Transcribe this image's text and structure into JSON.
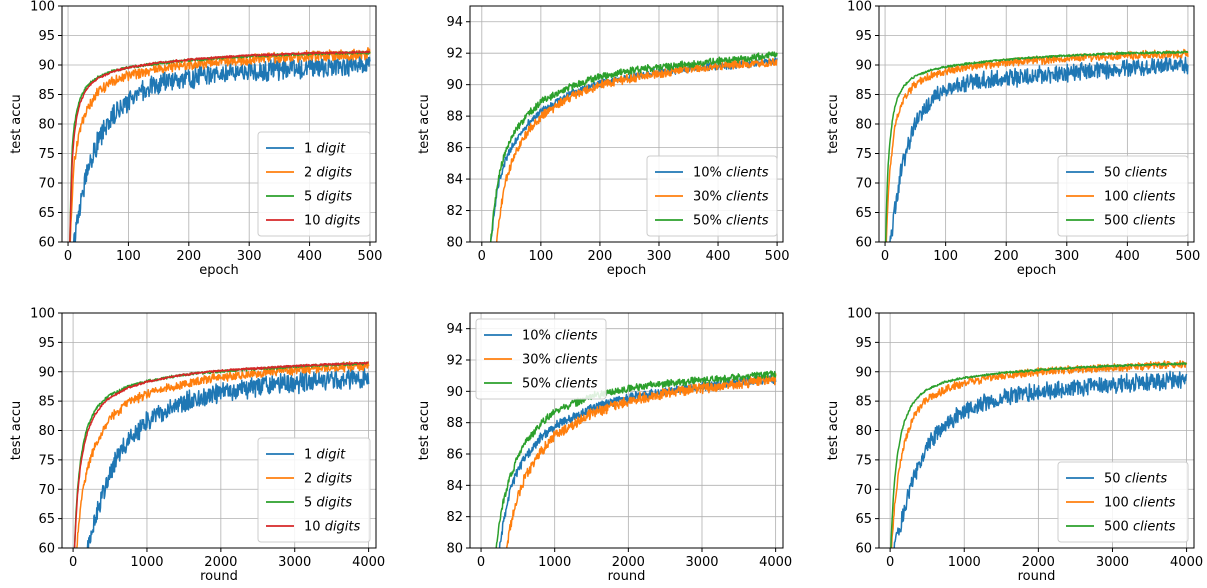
{
  "chart_data": [
    {
      "type": "line",
      "xlabel": "epoch",
      "ylabel": "test accu",
      "xlim": [
        -10,
        510
      ],
      "ylim": [
        60,
        100
      ],
      "xticks": [
        0,
        100,
        200,
        300,
        400,
        500
      ],
      "yticks": [
        60,
        65,
        70,
        75,
        80,
        85,
        90,
        95,
        100
      ],
      "grid": true,
      "legend": "lower-right",
      "series": [
        {
          "name_num": "1",
          "name_unit": "digit",
          "color": "#1f77b4",
          "x": [
            10,
            15,
            20,
            25,
            30,
            40,
            50,
            60,
            75,
            100,
            125,
            150,
            175,
            200,
            250,
            300,
            350,
            400,
            450,
            500
          ],
          "y": [
            60,
            63.5,
            66,
            69,
            71.5,
            74.5,
            77,
            79,
            81.5,
            84.2,
            85.8,
            86.8,
            87.3,
            87.8,
            88.3,
            88.8,
            89.2,
            89.5,
            89.8,
            90.2
          ],
          "noise": 1.6
        },
        {
          "name_num": "2",
          "name_unit": "digits",
          "color": "#ff7f0e",
          "x": [
            4,
            6,
            8,
            10,
            15,
            20,
            30,
            40,
            50,
            75,
            100,
            150,
            200,
            250,
            300,
            350,
            400,
            450,
            500
          ],
          "y": [
            60,
            66,
            70,
            73,
            76.5,
            79,
            82,
            84,
            85.5,
            87.3,
            88.3,
            89.4,
            90,
            90.6,
            91,
            91.3,
            91.5,
            91.7,
            91.9
          ],
          "noise": 0.8
        },
        {
          "name_num": "5",
          "name_unit": "digits",
          "color": "#2ca02c",
          "x": [
            3,
            5,
            7,
            10,
            15,
            20,
            30,
            40,
            50,
            75,
            100,
            150,
            200,
            250,
            300,
            350,
            400,
            450,
            500
          ],
          "y": [
            60,
            70,
            76,
            79.5,
            82.5,
            84.3,
            86.3,
            87.3,
            88,
            89,
            89.6,
            90.3,
            90.8,
            91.2,
            91.5,
            91.7,
            91.9,
            92,
            92.1
          ],
          "noise": 0.2
        },
        {
          "name_num": "10",
          "name_unit": "digits",
          "color": "#d62728",
          "x": [
            3,
            5,
            7,
            10,
            15,
            20,
            30,
            40,
            50,
            75,
            100,
            150,
            200,
            250,
            300,
            350,
            400,
            450,
            500
          ],
          "y": [
            60,
            68,
            74,
            78,
            81.5,
            83.6,
            85.8,
            87,
            87.8,
            88.9,
            89.6,
            90.4,
            90.9,
            91.3,
            91.6,
            91.8,
            92,
            92.1,
            92.2
          ],
          "noise": 0.15
        }
      ]
    },
    {
      "type": "line",
      "xlabel": "epoch",
      "ylabel": "test accu",
      "xlim": [
        -20,
        510
      ],
      "ylim": [
        80,
        95
      ],
      "xticks": [
        0,
        100,
        200,
        300,
        400,
        500
      ],
      "yticks": [
        80,
        82,
        84,
        86,
        88,
        90,
        92,
        94
      ],
      "grid": true,
      "legend": "lower-right",
      "series": [
        {
          "name_num": "10%",
          "name_unit": "clients",
          "color": "#1f77b4",
          "x": [
            15,
            20,
            25,
            30,
            40,
            50,
            75,
            100,
            150,
            200,
            250,
            300,
            350,
            400,
            450,
            500
          ],
          "y": [
            80,
            81.5,
            83,
            84,
            85.2,
            86,
            87.4,
            88.3,
            89.4,
            90.1,
            90.5,
            90.8,
            91,
            91.2,
            91.3,
            91.5
          ],
          "noise": 0.2
        },
        {
          "name_num": "30%",
          "name_unit": "clients",
          "color": "#ff7f0e",
          "x": [
            25,
            30,
            35,
            40,
            50,
            60,
            75,
            100,
            150,
            200,
            250,
            300,
            350,
            400,
            450,
            500
          ],
          "y": [
            80,
            81.5,
            82.8,
            83.8,
            85,
            85.8,
            86.9,
            88,
            89.2,
            90,
            90.4,
            90.7,
            91,
            91.2,
            91.3,
            91.4
          ],
          "noise": 0.25
        },
        {
          "name_num": "50%",
          "name_unit": "clients",
          "color": "#2ca02c",
          "x": [
            15,
            20,
            25,
            30,
            40,
            50,
            75,
            100,
            150,
            200,
            250,
            300,
            350,
            400,
            450,
            500
          ],
          "y": [
            80,
            81.8,
            83.3,
            84.4,
            85.8,
            86.7,
            88,
            88.9,
            89.9,
            90.5,
            90.9,
            91.1,
            91.3,
            91.5,
            91.7,
            91.9
          ],
          "noise": 0.2
        }
      ]
    },
    {
      "type": "line",
      "xlabel": "epoch",
      "ylabel": "test accu",
      "xlim": [
        -10,
        510
      ],
      "ylim": [
        60,
        100
      ],
      "xticks": [
        0,
        100,
        200,
        300,
        400,
        500
      ],
      "yticks": [
        60,
        65,
        70,
        75,
        80,
        85,
        90,
        95,
        100
      ],
      "grid": true,
      "legend": "lower-right",
      "series": [
        {
          "name_num": "50",
          "name_unit": "clients",
          "color": "#1f77b4",
          "x": [
            8,
            12,
            16,
            20,
            25,
            30,
            40,
            50,
            60,
            75,
            100,
            125,
            150,
            200,
            250,
            300,
            350,
            400,
            450,
            500
          ],
          "y": [
            60,
            62.5,
            65.5,
            68,
            71,
            73.5,
            77,
            79.8,
            81.8,
            83.8,
            85.8,
            86.7,
            87.2,
            87.7,
            88.2,
            88.7,
            89.1,
            89.4,
            89.7,
            90
          ],
          "noise": 1.3
        },
        {
          "name_num": "100",
          "name_unit": "clients",
          "color": "#ff7f0e",
          "x": [
            2,
            4,
            6,
            8,
            12,
            16,
            20,
            30,
            40,
            50,
            75,
            100,
            150,
            200,
            250,
            300,
            350,
            400,
            450,
            500
          ],
          "y": [
            60,
            65,
            69,
            72,
            76,
            79,
            81,
            84,
            85.6,
            86.7,
            88.2,
            89,
            89.9,
            90.4,
            90.8,
            91.1,
            91.4,
            91.6,
            91.8,
            91.9
          ],
          "noise": 0.6
        },
        {
          "name_num": "500",
          "name_unit": "clients",
          "color": "#2ca02c",
          "x": [
            1,
            3,
            5,
            8,
            12,
            16,
            20,
            30,
            40,
            50,
            75,
            100,
            150,
            200,
            250,
            300,
            350,
            400,
            450,
            500
          ],
          "y": [
            60,
            68,
            73,
            77,
            80.5,
            82.8,
            84.3,
            86.3,
            87.4,
            88.1,
            89.1,
            89.7,
            90.4,
            90.9,
            91.3,
            91.6,
            91.8,
            92,
            92.1,
            92.2
          ],
          "noise": 0.15
        }
      ]
    },
    {
      "type": "line",
      "xlabel": "round",
      "ylabel": "test accu",
      "xlim": [
        -150,
        4100
      ],
      "ylim": [
        60,
        100
      ],
      "xticks": [
        0,
        1000,
        2000,
        3000,
        4000
      ],
      "yticks": [
        60,
        65,
        70,
        75,
        80,
        85,
        90,
        95,
        100
      ],
      "grid": true,
      "legend": "lower-right",
      "series": [
        {
          "name_num": "1",
          "name_unit": "digit",
          "color": "#1f77b4",
          "x": [
            200,
            250,
            300,
            400,
            500,
            600,
            800,
            1000,
            1200,
            1500,
            1750,
            2000,
            2250,
            2500,
            3000,
            3500,
            4000
          ],
          "y": [
            60,
            62.5,
            65,
            69,
            72.5,
            75.5,
            79.2,
            81.5,
            83,
            84.8,
            85.8,
            86.5,
            87,
            87.4,
            88.1,
            88.6,
            89
          ],
          "noise": 1.5
        },
        {
          "name_num": "2",
          "name_unit": "digits",
          "color": "#ff7f0e",
          "x": [
            50,
            75,
            100,
            150,
            200,
            300,
            400,
            500,
            750,
            1000,
            1500,
            2000,
            2500,
            3000,
            3500,
            4000
          ],
          "y": [
            60,
            64,
            67,
            71,
            74,
            77.5,
            80,
            82,
            84.8,
            86.2,
            87.9,
            89,
            89.8,
            90.3,
            90.7,
            91
          ],
          "noise": 0.7
        },
        {
          "name_num": "5",
          "name_unit": "digits",
          "color": "#2ca02c",
          "x": [
            20,
            40,
            60,
            100,
            150,
            200,
            300,
            400,
            500,
            750,
            1000,
            1500,
            2000,
            2500,
            3000,
            3500,
            4000
          ],
          "y": [
            60,
            66,
            70,
            75,
            78.5,
            80.8,
            83.5,
            85,
            86,
            87.5,
            88.4,
            89.5,
            90.1,
            90.5,
            90.9,
            91.2,
            91.4
          ],
          "noise": 0.2
        },
        {
          "name_num": "10",
          "name_unit": "digits",
          "color": "#d62728",
          "x": [
            20,
            40,
            60,
            100,
            150,
            200,
            300,
            400,
            500,
            750,
            1000,
            1500,
            2000,
            2500,
            3000,
            3500,
            4000
          ],
          "y": [
            60,
            65,
            69,
            74,
            77.5,
            80,
            82.8,
            84.5,
            85.6,
            87.3,
            88.3,
            89.5,
            90.2,
            90.6,
            91,
            91.3,
            91.5
          ],
          "noise": 0.15
        }
      ]
    },
    {
      "type": "line",
      "xlabel": "round",
      "ylabel": "test accu",
      "xlim": [
        -150,
        4100
      ],
      "ylim": [
        80,
        95
      ],
      "xticks": [
        0,
        1000,
        2000,
        3000,
        4000
      ],
      "yticks": [
        80,
        82,
        84,
        86,
        88,
        90,
        92,
        94
      ],
      "grid": true,
      "legend": "upper-left",
      "series": [
        {
          "name_num": "10%",
          "name_unit": "clients",
          "color": "#1f77b4",
          "x": [
            250,
            300,
            350,
            400,
            500,
            600,
            800,
            1000,
            1500,
            2000,
            2500,
            3000,
            3500,
            4000
          ],
          "y": [
            80,
            81.5,
            82.8,
            83.8,
            85,
            85.8,
            87,
            87.8,
            88.9,
            89.6,
            90,
            90.3,
            90.6,
            90.8
          ],
          "noise": 0.25
        },
        {
          "name_num": "30%",
          "name_unit": "clients",
          "color": "#ff7f0e",
          "x": [
            350,
            400,
            450,
            500,
            600,
            700,
            800,
            1000,
            1500,
            2000,
            2500,
            3000,
            3500,
            4000
          ],
          "y": [
            80,
            81.4,
            82.5,
            83.3,
            84.5,
            85.4,
            86.1,
            87.2,
            88.6,
            89.4,
            89.9,
            90.2,
            90.5,
            90.8
          ],
          "noise": 0.3
        },
        {
          "name_num": "50%",
          "name_unit": "clients",
          "color": "#2ca02c",
          "x": [
            200,
            250,
            300,
            350,
            400,
            500,
            600,
            800,
            1000,
            1500,
            2000,
            2500,
            3000,
            3500,
            4000
          ],
          "y": [
            80,
            81.6,
            82.9,
            83.8,
            84.6,
            85.8,
            86.7,
            87.9,
            88.7,
            89.7,
            90.2,
            90.5,
            90.7,
            90.9,
            91.1
          ],
          "noise": 0.2
        }
      ]
    },
    {
      "type": "line",
      "xlabel": "round",
      "ylabel": "test accu",
      "xlim": [
        -150,
        4100
      ],
      "ylim": [
        60,
        100
      ],
      "xticks": [
        0,
        1000,
        2000,
        3000,
        4000
      ],
      "yticks": [
        60,
        65,
        70,
        75,
        80,
        85,
        90,
        95,
        100
      ],
      "grid": true,
      "legend": "lower-right",
      "series": [
        {
          "name_num": "50",
          "name_unit": "clients",
          "color": "#1f77b4",
          "x": [
            60,
            100,
            150,
            200,
            250,
            300,
            400,
            500,
            600,
            800,
            1000,
            1250,
            1500,
            2000,
            2500,
            3000,
            3500,
            4000
          ],
          "y": [
            60,
            62,
            64.5,
            67,
            69.5,
            71.5,
            74.5,
            77,
            79,
            81.5,
            83.2,
            84.6,
            85.6,
            86.6,
            87.2,
            87.8,
            88.3,
            88.7
          ],
          "noise": 1.3
        },
        {
          "name_num": "100",
          "name_unit": "clients",
          "color": "#ff7f0e",
          "x": [
            20,
            40,
            60,
            80,
            100,
            150,
            200,
            300,
            400,
            500,
            750,
            1000,
            1500,
            2000,
            2500,
            3000,
            3500,
            4000
          ],
          "y": [
            60,
            64,
            67,
            69.5,
            71.5,
            75.5,
            78.2,
            81.8,
            84,
            85.3,
            87.1,
            88.1,
            89.3,
            90,
            90.4,
            90.7,
            91,
            91.2
          ],
          "noise": 0.6
        },
        {
          "name_num": "500",
          "name_unit": "clients",
          "color": "#2ca02c",
          "x": [
            10,
            20,
            40,
            60,
            100,
            150,
            200,
            300,
            400,
            500,
            750,
            1000,
            1500,
            2000,
            2500,
            3000,
            3500,
            4000
          ],
          "y": [
            60,
            63,
            68,
            71.5,
            76,
            79.5,
            81.8,
            84.5,
            86,
            87,
            88.3,
            89,
            89.8,
            90.3,
            90.7,
            91,
            91.2,
            91.4
          ],
          "noise": 0.15
        }
      ]
    }
  ]
}
